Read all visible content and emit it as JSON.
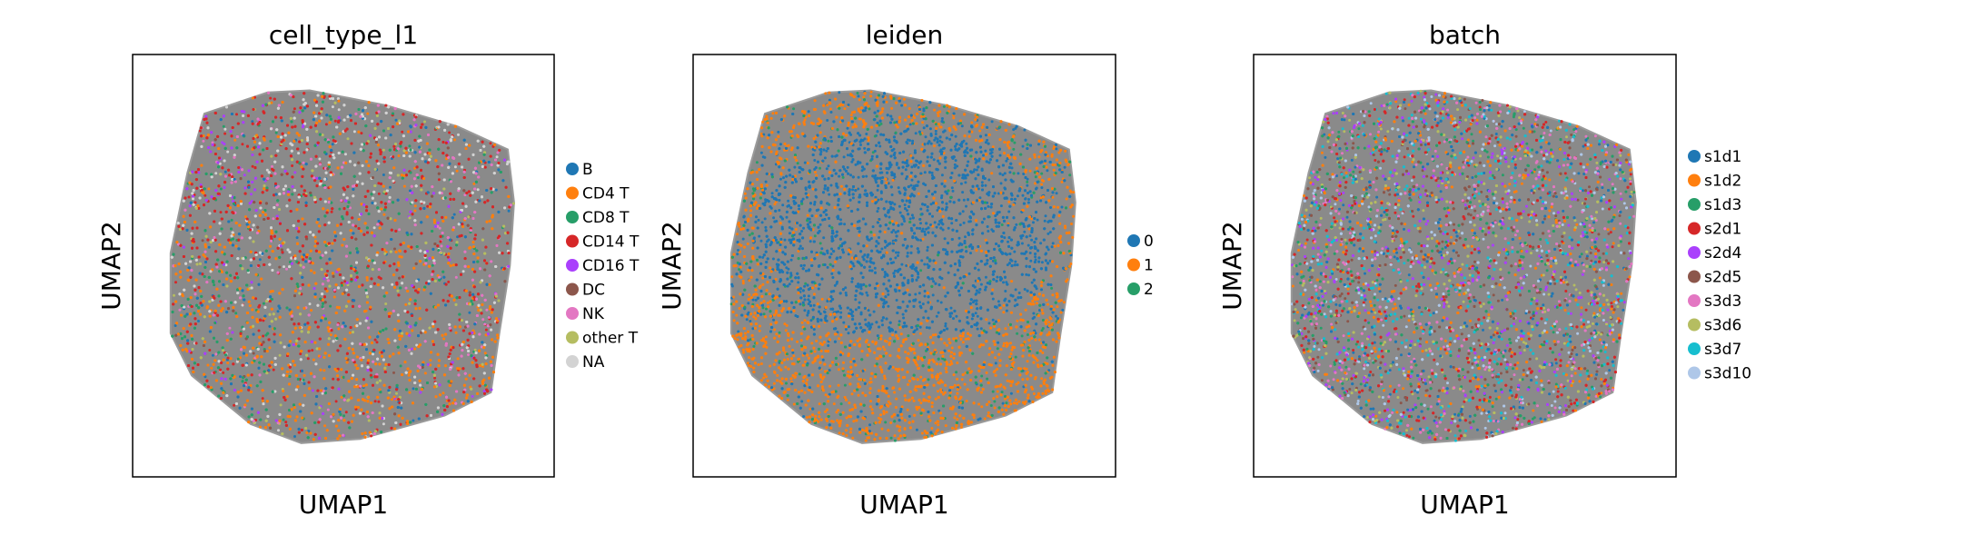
{
  "chart_data": [
    {
      "type": "scatter",
      "title": "cell_type_l1",
      "xlabel": "UMAP1",
      "ylabel": "UMAP2",
      "grid": false,
      "legend_position": "right",
      "series": [
        {
          "name": "B",
          "color": "#1f77b4",
          "weight": 8
        },
        {
          "name": "CD4 T",
          "color": "#ff7f0e",
          "weight": 24
        },
        {
          "name": "CD8 T",
          "color": "#279e68",
          "weight": 10
        },
        {
          "name": "CD14 T",
          "color": "#d62728",
          "weight": 22
        },
        {
          "name": "CD16 T",
          "color": "#aa40fc",
          "weight": 5
        },
        {
          "name": "DC",
          "color": "#8c564b",
          "weight": 3
        },
        {
          "name": "NK",
          "color": "#e377c2",
          "weight": 8
        },
        {
          "name": "other T",
          "color": "#b5bd61",
          "weight": 6
        },
        {
          "name": "NA",
          "color": "#d3d3d3",
          "weight": 14
        }
      ]
    },
    {
      "type": "scatter",
      "title": "leiden",
      "xlabel": "UMAP1",
      "ylabel": "UMAP2",
      "grid": false,
      "legend_position": "right",
      "series": [
        {
          "name": "0",
          "color": "#1f77b4",
          "weight": 55
        },
        {
          "name": "1",
          "color": "#ff7f0e",
          "weight": 40
        },
        {
          "name": "2",
          "color": "#279e68",
          "weight": 5
        }
      ]
    },
    {
      "type": "scatter",
      "title": "batch",
      "xlabel": "UMAP1",
      "ylabel": "UMAP2",
      "grid": false,
      "legend_position": "right",
      "series": [
        {
          "name": "s1d1",
          "color": "#1f77b4",
          "weight": 10
        },
        {
          "name": "s1d2",
          "color": "#ff7f0e",
          "weight": 10
        },
        {
          "name": "s1d3",
          "color": "#279e68",
          "weight": 10
        },
        {
          "name": "s2d1",
          "color": "#d62728",
          "weight": 10
        },
        {
          "name": "s2d4",
          "color": "#aa40fc",
          "weight": 10
        },
        {
          "name": "s2d5",
          "color": "#8c564b",
          "weight": 10
        },
        {
          "name": "s3d3",
          "color": "#e377c2",
          "weight": 10
        },
        {
          "name": "s3d6",
          "color": "#b5bd61",
          "weight": 10
        },
        {
          "name": "s3d7",
          "color": "#17becf",
          "weight": 10
        },
        {
          "name": "s3d10",
          "color": "#aec7e8",
          "weight": 10
        }
      ]
    }
  ]
}
